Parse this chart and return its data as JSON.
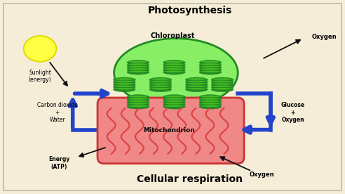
{
  "bg_color": "#f5edd8",
  "title_photosynthesis": "Photosynthesis",
  "title_cellular": "Cellular respiration",
  "label_chloroplast": "Chloroplast",
  "label_mitochondrion": "Mitochondrion",
  "label_sunlight": "Sunlight\n(energy)",
  "label_oxygen_top": "Oxygen",
  "label_co2": "Carbon dioxide\n+\nWater",
  "label_glucose": "Glucose\n+\nOxygen",
  "label_energy": "Energy\n(ATP)",
  "label_oxygen_bot": "Oxygen",
  "chloroplast_color": "#88ee66",
  "chloroplast_border": "#228b22",
  "mito_fill": "#f08888",
  "mito_border": "#cc3333",
  "sun_color": "#ffff44",
  "sun_border": "#dddd00",
  "arrow_blue": "#2244cc",
  "thylakoid_dark": "#228b22",
  "thylakoid_light": "#44bb22",
  "cristae_color": "#dd4444"
}
